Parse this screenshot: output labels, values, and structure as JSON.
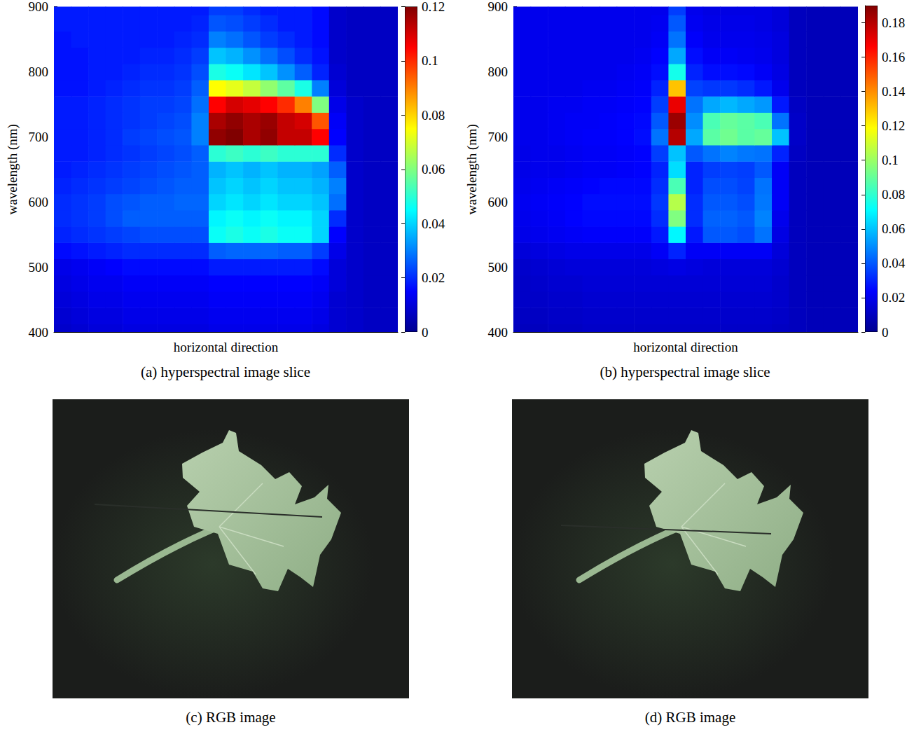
{
  "chart_data": [
    {
      "type": "heatmap",
      "caption": "(a) hyperspectral image slice",
      "x_label": "horizontal direction",
      "y_label": "wavelength (nm)",
      "ylim": [
        400,
        900
      ],
      "yticks": [
        400,
        500,
        600,
        700,
        800,
        900
      ],
      "tick_labels": "y",
      "colorbar_range": [
        0,
        0.12
      ],
      "colorbar_ticks": [
        0,
        0.02,
        0.04,
        0.06,
        0.08,
        0.1,
        0.12
      ],
      "y": [
        400,
        425,
        450,
        475,
        500,
        525,
        550,
        575,
        600,
        625,
        650,
        675,
        700,
        725,
        750,
        775,
        800,
        825,
        850,
        875,
        900
      ],
      "z": [
        [
          0.008,
          0.009,
          0.01,
          0.01,
          0.011,
          0.011,
          0.011,
          0.011,
          0.011,
          0.012,
          0.012,
          0.012,
          0.012,
          0.012,
          0.012,
          0.011,
          0.009,
          0.008,
          0.007,
          0.007
        ],
        [
          0.009,
          0.01,
          0.011,
          0.011,
          0.012,
          0.012,
          0.012,
          0.012,
          0.012,
          0.013,
          0.013,
          0.013,
          0.013,
          0.013,
          0.013,
          0.012,
          0.009,
          0.008,
          0.007,
          0.007
        ],
        [
          0.01,
          0.011,
          0.012,
          0.012,
          0.013,
          0.013,
          0.013,
          0.013,
          0.013,
          0.014,
          0.014,
          0.014,
          0.014,
          0.014,
          0.014,
          0.013,
          0.009,
          0.008,
          0.007,
          0.007
        ],
        [
          0.011,
          0.012,
          0.013,
          0.013,
          0.014,
          0.014,
          0.014,
          0.014,
          0.014,
          0.015,
          0.015,
          0.015,
          0.015,
          0.015,
          0.015,
          0.014,
          0.01,
          0.008,
          0.007,
          0.007
        ],
        [
          0.012,
          0.013,
          0.014,
          0.015,
          0.016,
          0.016,
          0.016,
          0.016,
          0.016,
          0.018,
          0.018,
          0.018,
          0.018,
          0.018,
          0.018,
          0.016,
          0.01,
          0.008,
          0.007,
          0.007
        ],
        [
          0.016,
          0.017,
          0.018,
          0.019,
          0.02,
          0.02,
          0.02,
          0.02,
          0.02,
          0.026,
          0.027,
          0.027,
          0.027,
          0.026,
          0.026,
          0.022,
          0.012,
          0.008,
          0.007,
          0.007
        ],
        [
          0.019,
          0.02,
          0.021,
          0.022,
          0.023,
          0.024,
          0.024,
          0.024,
          0.024,
          0.046,
          0.048,
          0.046,
          0.048,
          0.046,
          0.046,
          0.04,
          0.015,
          0.008,
          0.007,
          0.007
        ],
        [
          0.02,
          0.021,
          0.022,
          0.024,
          0.026,
          0.026,
          0.026,
          0.026,
          0.026,
          0.044,
          0.046,
          0.044,
          0.046,
          0.044,
          0.044,
          0.04,
          0.02,
          0.008,
          0.007,
          0.007
        ],
        [
          0.02,
          0.021,
          0.022,
          0.024,
          0.025,
          0.026,
          0.026,
          0.027,
          0.027,
          0.04,
          0.042,
          0.04,
          0.042,
          0.04,
          0.04,
          0.038,
          0.028,
          0.008,
          0.007,
          0.007
        ],
        [
          0.019,
          0.02,
          0.021,
          0.022,
          0.023,
          0.024,
          0.025,
          0.026,
          0.026,
          0.038,
          0.04,
          0.038,
          0.04,
          0.038,
          0.038,
          0.036,
          0.03,
          0.008,
          0.007,
          0.007
        ],
        [
          0.018,
          0.019,
          0.02,
          0.021,
          0.022,
          0.023,
          0.024,
          0.025,
          0.026,
          0.036,
          0.038,
          0.036,
          0.038,
          0.036,
          0.036,
          0.034,
          0.026,
          0.008,
          0.007,
          0.007
        ],
        [
          0.018,
          0.018,
          0.019,
          0.02,
          0.021,
          0.022,
          0.023,
          0.024,
          0.026,
          0.05,
          0.052,
          0.05,
          0.052,
          0.05,
          0.05,
          0.05,
          0.02,
          0.008,
          0.007,
          0.007
        ],
        [
          0.018,
          0.018,
          0.019,
          0.02,
          0.022,
          0.023,
          0.024,
          0.025,
          0.03,
          0.118,
          0.12,
          0.115,
          0.118,
          0.112,
          0.112,
          0.105,
          0.015,
          0.008,
          0.007,
          0.007
        ],
        [
          0.018,
          0.018,
          0.019,
          0.02,
          0.021,
          0.022,
          0.023,
          0.024,
          0.03,
          0.115,
          0.118,
          0.115,
          0.117,
          0.112,
          0.11,
          0.095,
          0.014,
          0.008,
          0.007,
          0.007
        ],
        [
          0.018,
          0.018,
          0.019,
          0.02,
          0.021,
          0.022,
          0.022,
          0.023,
          0.028,
          0.105,
          0.11,
          0.108,
          0.105,
          0.1,
          0.09,
          0.06,
          0.012,
          0.008,
          0.007,
          0.007
        ],
        [
          0.017,
          0.017,
          0.018,
          0.019,
          0.02,
          0.021,
          0.021,
          0.022,
          0.026,
          0.075,
          0.072,
          0.068,
          0.062,
          0.056,
          0.048,
          0.03,
          0.01,
          0.007,
          0.007,
          0.007
        ],
        [
          0.017,
          0.017,
          0.018,
          0.018,
          0.019,
          0.02,
          0.02,
          0.021,
          0.024,
          0.048,
          0.046,
          0.042,
          0.038,
          0.032,
          0.026,
          0.019,
          0.009,
          0.007,
          0.007,
          0.007
        ],
        [
          0.017,
          0.017,
          0.018,
          0.018,
          0.018,
          0.019,
          0.019,
          0.02,
          0.022,
          0.038,
          0.036,
          0.032,
          0.028,
          0.024,
          0.02,
          0.017,
          0.008,
          0.007,
          0.007,
          0.007
        ],
        [
          0.017,
          0.018,
          0.018,
          0.018,
          0.018,
          0.018,
          0.018,
          0.019,
          0.02,
          0.03,
          0.028,
          0.025,
          0.022,
          0.02,
          0.018,
          0.016,
          0.008,
          0.007,
          0.007,
          0.007
        ],
        [
          0.018,
          0.018,
          0.018,
          0.018,
          0.018,
          0.018,
          0.018,
          0.018,
          0.019,
          0.025,
          0.024,
          0.022,
          0.02,
          0.018,
          0.018,
          0.016,
          0.008,
          0.007,
          0.007,
          0.007
        ],
        [
          0.018,
          0.018,
          0.018,
          0.018,
          0.018,
          0.018,
          0.018,
          0.018,
          0.018,
          0.022,
          0.022,
          0.02,
          0.018,
          0.018,
          0.018,
          0.016,
          0.008,
          0.007,
          0.007,
          0.007
        ]
      ]
    },
    {
      "type": "heatmap",
      "caption": "(b) hyperspectral image slice",
      "x_label": "horizontal direction",
      "y_label": "wavelength (nm)",
      "ylim": [
        400,
        900
      ],
      "yticks": [
        400,
        500,
        600,
        700,
        800,
        900
      ],
      "tick_labels": "y",
      "colorbar_range": [
        0,
        0.19
      ],
      "colorbar_ticks": [
        0,
        0.02,
        0.04,
        0.06,
        0.08,
        0.1,
        0.12,
        0.14,
        0.16,
        0.18
      ],
      "y": [
        400,
        425,
        450,
        475,
        500,
        525,
        550,
        575,
        600,
        625,
        650,
        675,
        700,
        725,
        750,
        775,
        800,
        825,
        850,
        875,
        900
      ],
      "z": [
        [
          0.01,
          0.01,
          0.011,
          0.011,
          0.012,
          0.012,
          0.012,
          0.012,
          0.012,
          0.012,
          0.012,
          0.012,
          0.012,
          0.012,
          0.012,
          0.011,
          0.01,
          0.009,
          0.009,
          0.009
        ],
        [
          0.011,
          0.011,
          0.012,
          0.012,
          0.013,
          0.013,
          0.013,
          0.013,
          0.013,
          0.013,
          0.013,
          0.013,
          0.013,
          0.013,
          0.013,
          0.012,
          0.01,
          0.009,
          0.009,
          0.009
        ],
        [
          0.012,
          0.012,
          0.013,
          0.013,
          0.014,
          0.014,
          0.014,
          0.014,
          0.014,
          0.014,
          0.014,
          0.014,
          0.014,
          0.014,
          0.014,
          0.013,
          0.01,
          0.009,
          0.009,
          0.009
        ],
        [
          0.012,
          0.013,
          0.014,
          0.014,
          0.015,
          0.015,
          0.015,
          0.015,
          0.015,
          0.015,
          0.015,
          0.015,
          0.015,
          0.015,
          0.015,
          0.013,
          0.01,
          0.009,
          0.009,
          0.009
        ],
        [
          0.013,
          0.014,
          0.015,
          0.016,
          0.016,
          0.016,
          0.016,
          0.016,
          0.017,
          0.018,
          0.017,
          0.016,
          0.016,
          0.016,
          0.016,
          0.014,
          0.01,
          0.009,
          0.009,
          0.009
        ],
        [
          0.016,
          0.017,
          0.018,
          0.019,
          0.019,
          0.019,
          0.019,
          0.019,
          0.022,
          0.03,
          0.022,
          0.022,
          0.022,
          0.022,
          0.022,
          0.016,
          0.01,
          0.009,
          0.009,
          0.009
        ],
        [
          0.019,
          0.02,
          0.021,
          0.022,
          0.023,
          0.023,
          0.023,
          0.023,
          0.028,
          0.07,
          0.028,
          0.04,
          0.04,
          0.038,
          0.045,
          0.018,
          0.01,
          0.009,
          0.009,
          0.009
        ],
        [
          0.02,
          0.021,
          0.022,
          0.024,
          0.025,
          0.025,
          0.025,
          0.025,
          0.032,
          0.095,
          0.032,
          0.042,
          0.042,
          0.04,
          0.048,
          0.02,
          0.01,
          0.009,
          0.009,
          0.009
        ],
        [
          0.021,
          0.022,
          0.023,
          0.024,
          0.026,
          0.026,
          0.026,
          0.026,
          0.034,
          0.105,
          0.032,
          0.04,
          0.04,
          0.038,
          0.046,
          0.022,
          0.01,
          0.009,
          0.009,
          0.009
        ],
        [
          0.02,
          0.021,
          0.022,
          0.023,
          0.024,
          0.025,
          0.025,
          0.025,
          0.032,
          0.085,
          0.03,
          0.038,
          0.038,
          0.036,
          0.045,
          0.022,
          0.01,
          0.009,
          0.009,
          0.009
        ],
        [
          0.019,
          0.02,
          0.02,
          0.021,
          0.022,
          0.022,
          0.023,
          0.024,
          0.03,
          0.065,
          0.03,
          0.035,
          0.036,
          0.035,
          0.04,
          0.022,
          0.01,
          0.009,
          0.009,
          0.009
        ],
        [
          0.019,
          0.02,
          0.02,
          0.021,
          0.022,
          0.022,
          0.023,
          0.024,
          0.035,
          0.06,
          0.04,
          0.045,
          0.048,
          0.046,
          0.045,
          0.03,
          0.011,
          0.009,
          0.009,
          0.009
        ],
        [
          0.02,
          0.02,
          0.021,
          0.022,
          0.023,
          0.023,
          0.024,
          0.026,
          0.045,
          0.18,
          0.055,
          0.088,
          0.092,
          0.088,
          0.09,
          0.06,
          0.012,
          0.009,
          0.009,
          0.009
        ],
        [
          0.02,
          0.02,
          0.021,
          0.022,
          0.022,
          0.023,
          0.024,
          0.025,
          0.04,
          0.185,
          0.05,
          0.085,
          0.09,
          0.088,
          0.085,
          0.045,
          0.012,
          0.009,
          0.009,
          0.009
        ],
        [
          0.02,
          0.02,
          0.021,
          0.021,
          0.022,
          0.022,
          0.023,
          0.024,
          0.035,
          0.17,
          0.045,
          0.055,
          0.058,
          0.055,
          0.052,
          0.028,
          0.011,
          0.009,
          0.009,
          0.009
        ],
        [
          0.02,
          0.02,
          0.02,
          0.02,
          0.021,
          0.021,
          0.022,
          0.023,
          0.03,
          0.13,
          0.036,
          0.034,
          0.034,
          0.032,
          0.028,
          0.02,
          0.01,
          0.009,
          0.009,
          0.009
        ],
        [
          0.02,
          0.02,
          0.02,
          0.02,
          0.02,
          0.02,
          0.021,
          0.022,
          0.026,
          0.075,
          0.03,
          0.026,
          0.026,
          0.025,
          0.022,
          0.018,
          0.01,
          0.009,
          0.009,
          0.009
        ],
        [
          0.02,
          0.02,
          0.02,
          0.02,
          0.02,
          0.02,
          0.02,
          0.021,
          0.024,
          0.055,
          0.026,
          0.022,
          0.022,
          0.021,
          0.02,
          0.017,
          0.01,
          0.009,
          0.009,
          0.009
        ],
        [
          0.02,
          0.02,
          0.02,
          0.02,
          0.02,
          0.02,
          0.02,
          0.02,
          0.022,
          0.045,
          0.023,
          0.02,
          0.02,
          0.02,
          0.019,
          0.017,
          0.01,
          0.009,
          0.009,
          0.009
        ],
        [
          0.02,
          0.02,
          0.02,
          0.02,
          0.02,
          0.02,
          0.02,
          0.02,
          0.021,
          0.04,
          0.021,
          0.019,
          0.019,
          0.019,
          0.018,
          0.016,
          0.01,
          0.009,
          0.009,
          0.009
        ],
        [
          0.02,
          0.02,
          0.02,
          0.02,
          0.02,
          0.02,
          0.02,
          0.02,
          0.02,
          0.035,
          0.02,
          0.018,
          0.018,
          0.018,
          0.018,
          0.016,
          0.01,
          0.009,
          0.009,
          0.009
        ]
      ]
    }
  ],
  "images": [
    {
      "caption": "(c) RGB image"
    },
    {
      "caption": "(d) RGB image"
    }
  ]
}
